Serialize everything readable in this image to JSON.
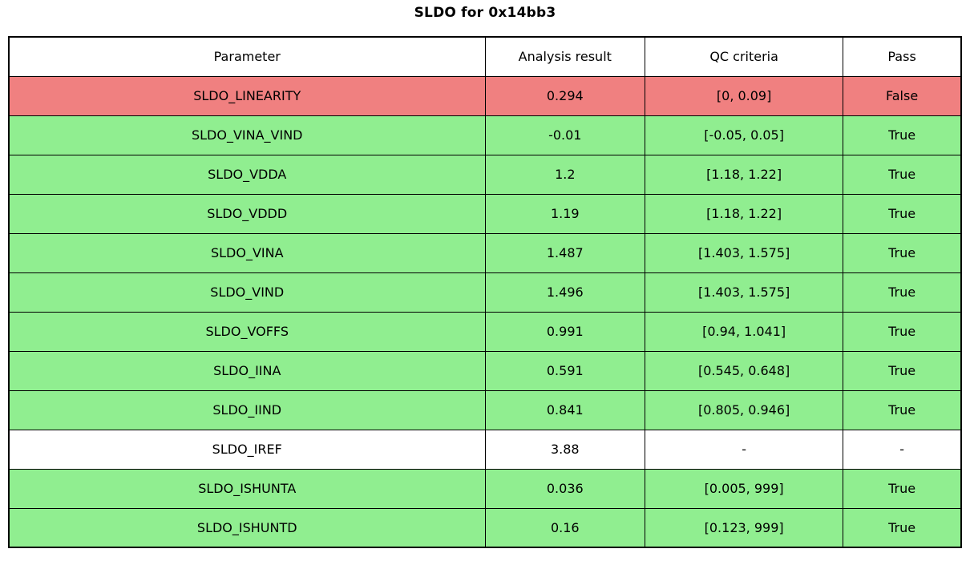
{
  "title": "SLDO for 0x14bb3",
  "colors": {
    "pass_green": "#90ee90",
    "fail_red": "#f08080",
    "neutral_white": "#ffffff",
    "border_black": "#000000"
  },
  "chart_data": {
    "type": "table",
    "title": "SLDO for 0x14bb3",
    "columns": [
      "Parameter",
      "Analysis result",
      "QC criteria",
      "Pass"
    ],
    "rows": [
      {
        "parameter": "SLDO_LINEARITY",
        "result": "0.294",
        "criteria": "[0, 0.09]",
        "pass": "False"
      },
      {
        "parameter": "SLDO_VINA_VIND",
        "result": "-0.01",
        "criteria": "[-0.05, 0.05]",
        "pass": "True"
      },
      {
        "parameter": "SLDO_VDDA",
        "result": "1.2",
        "criteria": "[1.18, 1.22]",
        "pass": "True"
      },
      {
        "parameter": "SLDO_VDDD",
        "result": "1.19",
        "criteria": "[1.18, 1.22]",
        "pass": "True"
      },
      {
        "parameter": "SLDO_VINA",
        "result": "1.487",
        "criteria": "[1.403, 1.575]",
        "pass": "True"
      },
      {
        "parameter": "SLDO_VIND",
        "result": "1.496",
        "criteria": "[1.403, 1.575]",
        "pass": "True"
      },
      {
        "parameter": "SLDO_VOFFS",
        "result": "0.991",
        "criteria": "[0.94, 1.041]",
        "pass": "True"
      },
      {
        "parameter": "SLDO_IINA",
        "result": "0.591",
        "criteria": "[0.545, 0.648]",
        "pass": "True"
      },
      {
        "parameter": "SLDO_IIND",
        "result": "0.841",
        "criteria": "[0.805, 0.946]",
        "pass": "True"
      },
      {
        "parameter": "SLDO_IREF",
        "result": "3.88",
        "criteria": "-",
        "pass": "-"
      },
      {
        "parameter": "SLDO_ISHUNTA",
        "result": "0.036",
        "criteria": "[0.005, 999]",
        "pass": "True"
      },
      {
        "parameter": "SLDO_ISHUNTD",
        "result": "0.16",
        "criteria": "[0.123, 999]",
        "pass": "True"
      }
    ]
  }
}
